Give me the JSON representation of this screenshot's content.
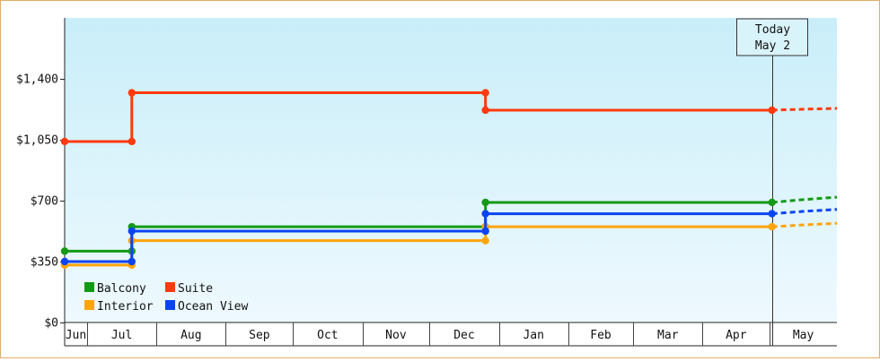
{
  "chart_data": {
    "type": "line",
    "step": true,
    "title": "",
    "xlabel": "",
    "ylabel": "",
    "ylim": [
      0,
      1750
    ],
    "y_ticks": [
      {
        "value": 0,
        "label": "$0"
      },
      {
        "value": 350,
        "label": "$350"
      },
      {
        "value": 700,
        "label": "$700"
      },
      {
        "value": 1050,
        "label": "$1,050"
      },
      {
        "value": 1400,
        "label": "$1,400"
      }
    ],
    "x_months": [
      "Jun",
      "Jul",
      "Aug",
      "Sep",
      "Oct",
      "Nov",
      "Dec",
      "Jan",
      "Feb",
      "Mar",
      "Apr",
      "May"
    ],
    "x_range": [
      "2023-06-21",
      "2024-05-31"
    ],
    "today": {
      "line1": "Today",
      "line2": "May 2",
      "date": "2024-05-02"
    },
    "legend_position": "bottom-left",
    "grid": "vertical month dividers",
    "background": {
      "top": "#c9eef9",
      "bottom": "#eef9fe"
    },
    "series": [
      {
        "name": "Balcony",
        "color": "#139a14",
        "points": [
          [
            "2023-06-21",
            410
          ],
          [
            "2023-07-21",
            410
          ],
          [
            "2023-07-21",
            550
          ],
          [
            "2023-12-26",
            550
          ],
          [
            "2023-12-26",
            690
          ],
          [
            "2024-05-02",
            690
          ]
        ],
        "forecast": [
          [
            "2024-05-02",
            690
          ],
          [
            "2024-05-31",
            720
          ]
        ]
      },
      {
        "name": "Suite",
        "color": "#ff3a0d",
        "points": [
          [
            "2023-06-21",
            1040
          ],
          [
            "2023-07-21",
            1040
          ],
          [
            "2023-07-21",
            1320
          ],
          [
            "2023-12-26",
            1320
          ],
          [
            "2023-12-26",
            1220
          ],
          [
            "2024-05-02",
            1220
          ]
        ],
        "forecast": [
          [
            "2024-05-02",
            1220
          ],
          [
            "2024-05-31",
            1230
          ]
        ]
      },
      {
        "name": "Interior",
        "color": "#ffa50a",
        "points": [
          [
            "2023-06-21",
            330
          ],
          [
            "2023-07-21",
            330
          ],
          [
            "2023-07-21",
            470
          ],
          [
            "2023-12-26",
            470
          ],
          [
            "2023-12-26",
            550
          ],
          [
            "2024-05-02",
            550
          ]
        ],
        "forecast": [
          [
            "2024-05-02",
            550
          ],
          [
            "2024-05-31",
            570
          ]
        ]
      },
      {
        "name": "Ocean View",
        "color": "#0a44f2",
        "points": [
          [
            "2023-06-21",
            350
          ],
          [
            "2023-07-21",
            350
          ],
          [
            "2023-07-21",
            525
          ],
          [
            "2023-12-26",
            525
          ],
          [
            "2023-12-26",
            625
          ],
          [
            "2024-05-02",
            625
          ]
        ],
        "forecast": [
          [
            "2024-05-02",
            625
          ],
          [
            "2024-05-31",
            650
          ]
        ]
      }
    ],
    "legend": [
      {
        "series": "Balcony",
        "color": "#139a14"
      },
      {
        "series": "Suite",
        "color": "#ff3a0d"
      },
      {
        "series": "Interior",
        "color": "#ffa50a"
      },
      {
        "series": "Ocean View",
        "color": "#0a44f2"
      }
    ]
  }
}
